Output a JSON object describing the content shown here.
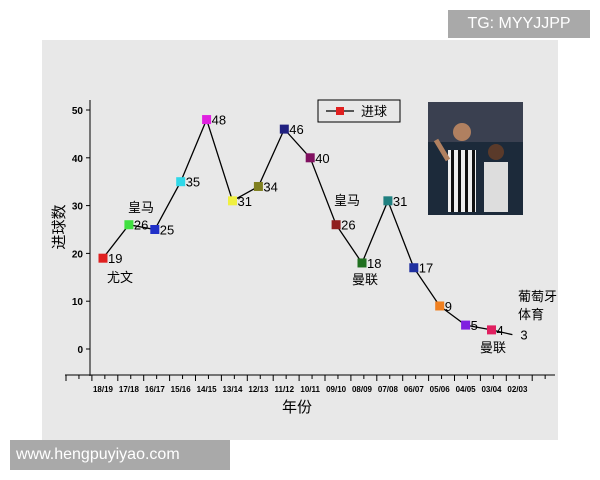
{
  "watermarks": {
    "top": "TG: MYYJJPP",
    "bottom": "www.hengpuyiyao.com"
  },
  "chart_data": {
    "type": "line",
    "title": "",
    "xlabel": "年份",
    "ylabel": "进球数",
    "ylim": [
      -3,
      55
    ],
    "yticks": [
      0,
      10,
      20,
      30,
      40,
      50
    ],
    "grid": false,
    "legend": {
      "position": "top-center",
      "entries": [
        "进球"
      ]
    },
    "categories": [
      "18/19",
      "17/18",
      "16/17",
      "15/16",
      "14/15",
      "13/14",
      "12/13",
      "11/12",
      "10/11",
      "09/10",
      "08/09",
      "07/08",
      "06/07",
      "05/06",
      "04/05",
      "03/04",
      "02/03"
    ],
    "series": [
      {
        "name": "进球",
        "values": [
          19,
          26,
          25,
          35,
          48,
          31,
          34,
          46,
          40,
          26,
          18,
          31,
          17,
          9,
          5,
          4,
          3
        ],
        "colors": [
          "#e02020",
          "#40e040",
          "#2030c8",
          "#30d8e8",
          "#e020e0",
          "#f0f040",
          "#808020",
          "#202080",
          "#801060",
          "#902020",
          "#207020",
          "#208080",
          "#2030a0",
          "#f08020",
          "#8020e0",
          "#e02060",
          null
        ]
      }
    ],
    "annotations": [
      {
        "category": "18/19",
        "text": "尤文"
      },
      {
        "category": "17/18",
        "text": "皇马"
      },
      {
        "category": "09/10",
        "text": "皇马"
      },
      {
        "category": "08/09",
        "text": "曼联"
      },
      {
        "category": "03/04",
        "text": "曼联"
      },
      {
        "category": "02/03",
        "text": "葡萄牙体育"
      }
    ]
  }
}
